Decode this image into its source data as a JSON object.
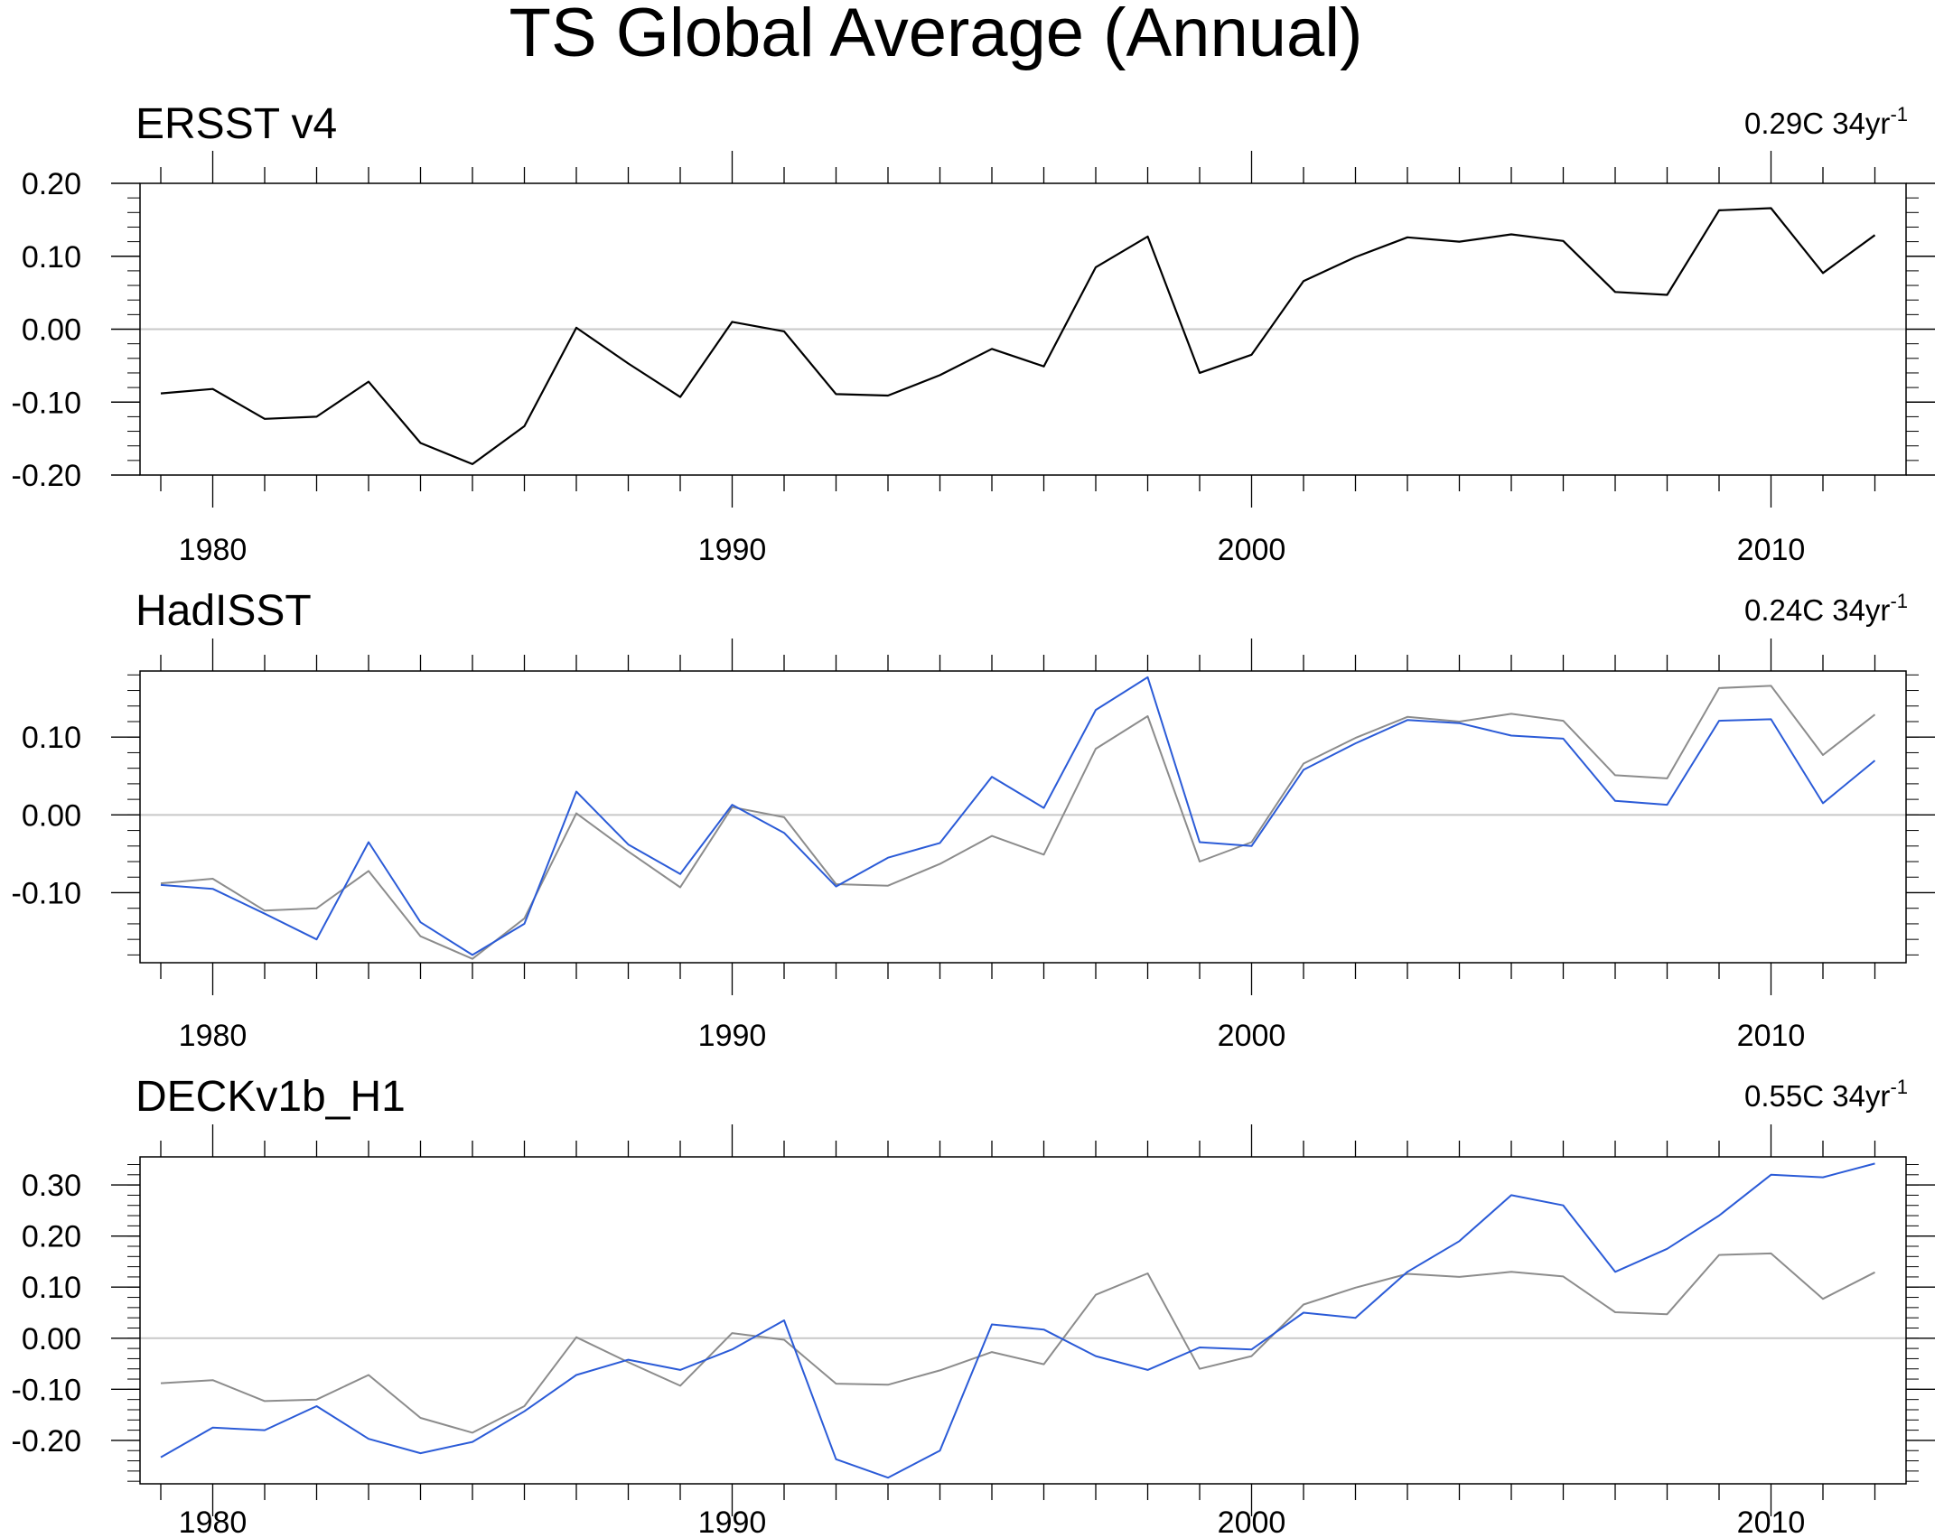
{
  "page_title": "TS Global Average (Annual)",
  "colors": {
    "reference": "#000000",
    "reference_overlay": "#8c8c8c",
    "model": "#2b5bd7",
    "zero_line": "#c8c8c8",
    "axis": "#000000"
  },
  "chart_data": [
    {
      "type": "line",
      "title": "ERSST v4",
      "trend_text": "0.29C 34yr",
      "trend_sup": "-1",
      "xlim": [
        1978.6,
        2012.6
      ],
      "ylim": [
        -0.2,
        0.2
      ],
      "x_ticks": [
        1980,
        1990,
        2000,
        2010
      ],
      "y_ticks": [
        -0.2,
        -0.1,
        0.0,
        0.1,
        0.2
      ],
      "y_tick_labels": [
        "-0.20",
        "-0.10",
        "0.00",
        "0.10",
        "0.20"
      ],
      "x": [
        1979,
        1980,
        1981,
        1982,
        1983,
        1984,
        1985,
        1986,
        1987,
        1988,
        1989,
        1990,
        1991,
        1992,
        1993,
        1994,
        1995,
        1996,
        1997,
        1998,
        1999,
        2000,
        2001,
        2002,
        2003,
        2004,
        2005,
        2006,
        2007,
        2008,
        2009,
        2010,
        2011,
        2012
      ],
      "series": [
        {
          "name": "ERSST v4",
          "role": "reference",
          "values": [
            -0.088,
            -0.082,
            -0.123,
            -0.12,
            -0.072,
            -0.156,
            -0.185,
            -0.133,
            0.002,
            -0.047,
            -0.093,
            0.01,
            -0.003,
            -0.089,
            -0.091,
            -0.063,
            -0.027,
            -0.051,
            0.085,
            0.127,
            -0.06,
            -0.035,
            0.066,
            0.099,
            0.126,
            0.12,
            0.13,
            0.121,
            0.051,
            0.047,
            0.163,
            0.166,
            0.077,
            0.129
          ]
        }
      ]
    },
    {
      "type": "line",
      "title": "HadISST",
      "trend_text": "0.24C 34yr",
      "trend_sup": "-1",
      "xlim": [
        1978.6,
        2012.6
      ],
      "ylim": [
        -0.19,
        0.185
      ],
      "x_ticks": [
        1980,
        1990,
        2000,
        2010
      ],
      "y_ticks": [
        -0.1,
        0.0,
        0.1
      ],
      "y_tick_labels": [
        "-0.10",
        "0.00",
        "0.10"
      ],
      "x": [
        1979,
        1980,
        1981,
        1982,
        1983,
        1984,
        1985,
        1986,
        1987,
        1988,
        1989,
        1990,
        1991,
        1992,
        1993,
        1994,
        1995,
        1996,
        1997,
        1998,
        1999,
        2000,
        2001,
        2002,
        2003,
        2004,
        2005,
        2006,
        2007,
        2008,
        2009,
        2010,
        2011,
        2012
      ],
      "series": [
        {
          "name": "ERSST v4",
          "role": "reference_overlay",
          "values": [
            -0.088,
            -0.082,
            -0.123,
            -0.12,
            -0.072,
            -0.156,
            -0.185,
            -0.133,
            0.002,
            -0.047,
            -0.093,
            0.01,
            -0.003,
            -0.089,
            -0.091,
            -0.063,
            -0.027,
            -0.051,
            0.085,
            0.127,
            -0.06,
            -0.035,
            0.066,
            0.099,
            0.126,
            0.12,
            0.13,
            0.121,
            0.051,
            0.047,
            0.163,
            0.166,
            0.077,
            0.129
          ]
        },
        {
          "name": "HadISST",
          "role": "model",
          "values": [
            -0.09,
            -0.095,
            -0.127,
            -0.16,
            -0.035,
            -0.138,
            -0.18,
            -0.14,
            0.03,
            -0.038,
            -0.076,
            0.013,
            -0.023,
            -0.092,
            -0.055,
            -0.036,
            0.049,
            0.009,
            0.135,
            0.177,
            -0.035,
            -0.04,
            0.058,
            0.092,
            0.122,
            0.118,
            0.102,
            0.098,
            0.018,
            0.013,
            0.121,
            0.123,
            0.015,
            0.07
          ]
        }
      ]
    },
    {
      "type": "line",
      "title": "DECKv1b_H1",
      "trend_text": "0.55C 34yr",
      "trend_sup": "-1",
      "xlim": [
        1978.6,
        2012.6
      ],
      "ylim": [
        -0.285,
        0.355
      ],
      "x_ticks": [
        1980,
        1990,
        2000,
        2010
      ],
      "y_ticks": [
        -0.2,
        -0.1,
        0.0,
        0.1,
        0.2,
        0.3
      ],
      "y_tick_labels": [
        "-0.20",
        "-0.10",
        "0.00",
        "0.10",
        "0.20",
        "0.30"
      ],
      "x": [
        1979,
        1980,
        1981,
        1982,
        1983,
        1984,
        1985,
        1986,
        1987,
        1988,
        1989,
        1990,
        1991,
        1992,
        1993,
        1994,
        1995,
        1996,
        1997,
        1998,
        1999,
        2000,
        2001,
        2002,
        2003,
        2004,
        2005,
        2006,
        2007,
        2008,
        2009,
        2010,
        2011,
        2012
      ],
      "series": [
        {
          "name": "ERSST v4",
          "role": "reference_overlay",
          "values": [
            -0.088,
            -0.082,
            -0.123,
            -0.12,
            -0.072,
            -0.156,
            -0.185,
            -0.133,
            0.002,
            -0.047,
            -0.093,
            0.01,
            -0.003,
            -0.089,
            -0.091,
            -0.063,
            -0.027,
            -0.051,
            0.085,
            0.127,
            -0.06,
            -0.035,
            0.066,
            0.099,
            0.126,
            0.12,
            0.13,
            0.121,
            0.051,
            0.047,
            0.163,
            0.166,
            0.077,
            0.129
          ]
        },
        {
          "name": "DECKv1b_H1",
          "role": "model",
          "values": [
            -0.233,
            -0.175,
            -0.18,
            -0.133,
            -0.197,
            -0.225,
            -0.203,
            -0.143,
            -0.072,
            -0.042,
            -0.062,
            -0.022,
            0.035,
            -0.237,
            -0.273,
            -0.22,
            0.027,
            0.017,
            -0.035,
            -0.062,
            -0.018,
            -0.022,
            0.05,
            0.04,
            0.13,
            0.19,
            0.28,
            0.26,
            0.13,
            0.175,
            0.24,
            0.32,
            0.315,
            0.342
          ]
        }
      ]
    }
  ]
}
